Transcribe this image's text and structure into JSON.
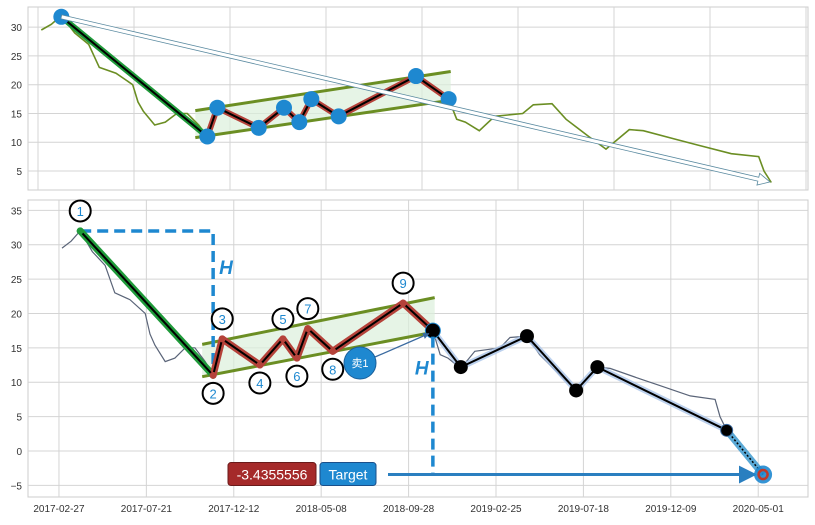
{
  "chart_data": {
    "type": "line",
    "x_unit": "days since 2017-02-27",
    "colors": {
      "price_top": "#6b8e23",
      "price_bottom": "#5a6478",
      "pivot": "#1e88d0",
      "impulse": "#1f9a3a",
      "zigzag": "#b5423a",
      "channel": "#6b8e23",
      "channel_fill": "#dcefdc",
      "h_line": "#1e88d0",
      "value_box": "#a52a2a",
      "target_box": "#1e88d0",
      "forecast_halo": "#aac4e8"
    },
    "price_series": [
      [
        5,
        29.5
      ],
      [
        20,
        30.5
      ],
      [
        35,
        32
      ],
      [
        55,
        29
      ],
      [
        76,
        27
      ],
      [
        92,
        23
      ],
      [
        117,
        22
      ],
      [
        142,
        20
      ],
      [
        150,
        17
      ],
      [
        158,
        15.4
      ],
      [
        175,
        13
      ],
      [
        191,
        13.5
      ],
      [
        208,
        15
      ],
      [
        224,
        15
      ],
      [
        241,
        13
      ],
      [
        254,
        11
      ],
      [
        269,
        16
      ],
      [
        298,
        14
      ],
      [
        331,
        12.5
      ],
      [
        369,
        16
      ],
      [
        392,
        13.5
      ],
      [
        410,
        17.5
      ],
      [
        451,
        14.5
      ],
      [
        496,
        17
      ],
      [
        529,
        19
      ],
      [
        567,
        21.5
      ],
      [
        595,
        19
      ],
      [
        616,
        17.5
      ],
      [
        628,
        14
      ],
      [
        641,
        13.5
      ],
      [
        662,
        12
      ],
      [
        685,
        14.5
      ],
      [
        727,
        15
      ],
      [
        743,
        16.5
      ],
      [
        771,
        16.7
      ],
      [
        792,
        14
      ],
      [
        826,
        11
      ],
      [
        852,
        8.8
      ],
      [
        887,
        12.2
      ],
      [
        908,
        12
      ],
      [
        957,
        10.5
      ],
      [
        990,
        9.5
      ],
      [
        1040,
        8
      ],
      [
        1081,
        7.5
      ],
      [
        1089,
        5
      ],
      [
        1100,
        3
      ]
    ],
    "top_panel": {
      "yticks": [
        5,
        10,
        15,
        20,
        25,
        30
      ],
      "xgrid_days": [
        0,
        144,
        288,
        432,
        576,
        720,
        864,
        1008,
        1152
      ],
      "pivots": [
        [
          35,
          31.8
        ],
        [
          254,
          11
        ],
        [
          269,
          16
        ],
        [
          331,
          12.5
        ],
        [
          369,
          16
        ],
        [
          392,
          13.5
        ],
        [
          410,
          17.5
        ],
        [
          451,
          14.5
        ],
        [
          567,
          21.5
        ],
        [
          616,
          17.5
        ]
      ],
      "trend_arrow": [
        [
          35,
          31.8
        ],
        [
          1098,
          3.1
        ]
      ]
    },
    "bottom_panel": {
      "yticks": [
        -5,
        0,
        5,
        10,
        15,
        20,
        25,
        30,
        35
      ],
      "xticks": [
        0,
        144,
        288,
        432,
        576,
        720,
        864,
        1008,
        1152
      ],
      "xtick_labels": [
        "2017-02-27",
        "2017-07-21",
        "2017-12-12",
        "2018-05-08",
        "2018-09-28",
        "2019-02-25",
        "2019-07-18",
        "2019-12-09",
        "2020-05-01"
      ],
      "wave_pivots": [
        [
          35,
          32
        ],
        [
          254,
          11
        ],
        [
          269,
          16.3
        ],
        [
          331,
          12.5
        ],
        [
          369,
          16.3
        ],
        [
          392,
          13.5
        ],
        [
          410,
          17.8
        ],
        [
          451,
          14.5
        ],
        [
          567,
          21.5
        ],
        [
          616,
          17.5
        ]
      ],
      "wave_labels": [
        "1",
        "2",
        "3",
        "4",
        "5",
        "6",
        "7",
        "8",
        "9"
      ],
      "forecast": [
        [
          616,
          17.5
        ],
        [
          662,
          12.2
        ],
        [
          771,
          16.7
        ],
        [
          852,
          8.8
        ],
        [
          887,
          12.2
        ],
        [
          1100,
          3
        ]
      ],
      "target_point": [
        1160,
        -3.4355556
      ],
      "h_label": "H",
      "sell_label": "卖1",
      "target_value_label": "-3.4355556",
      "target_label": "Target"
    },
    "channel": {
      "upper": [
        [
          236,
          15.5
        ],
        [
          619,
          22.3
        ]
      ],
      "lower": [
        [
          236,
          10.8
        ],
        [
          619,
          17.3
        ]
      ]
    }
  }
}
